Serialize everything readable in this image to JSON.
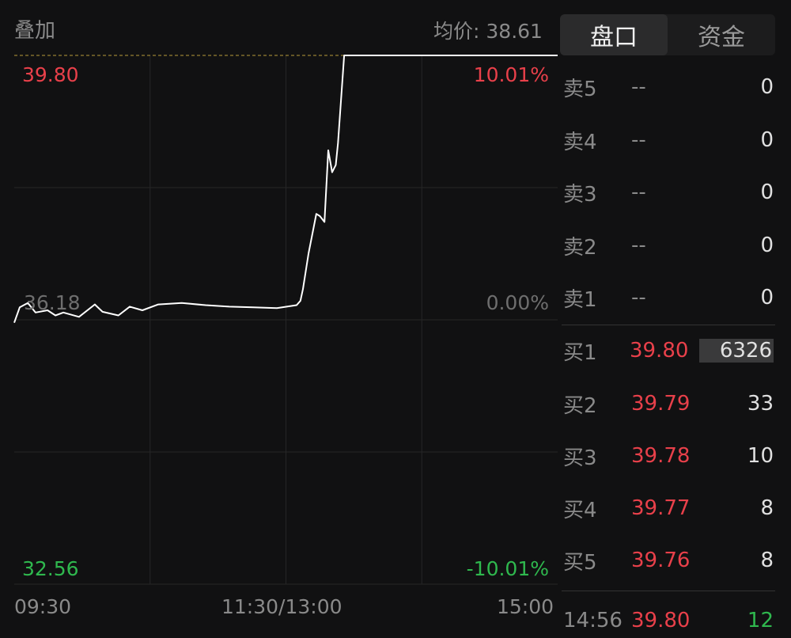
{
  "header": {
    "overlay_label": "叠加",
    "avg_price_label": "均价:",
    "avg_price": "38.61"
  },
  "tabs": [
    {
      "label": "盘口",
      "active": true
    },
    {
      "label": "资金",
      "active": false
    }
  ],
  "axis": {
    "price_high": "39.80",
    "price_mid": "36.18",
    "price_low": "32.56",
    "pct_high": "10.01%",
    "pct_mid": "0.00%",
    "pct_low": "-10.01%",
    "times": [
      "09:30",
      "11:30/13:00",
      "15:00"
    ]
  },
  "colors": {
    "up": "#e8404a",
    "down": "#2fb84e",
    "line": "#ffffff",
    "bg": "#111112"
  },
  "chart_data": {
    "type": "line",
    "ylim": [
      32.56,
      39.8
    ],
    "xlim_minutes": [
      0,
      240
    ],
    "x": [
      0,
      2.4,
      6,
      9.4,
      14.7,
      18.2,
      21.7,
      28.6,
      35.6,
      39,
      46,
      51,
      56.6,
      63.6,
      74,
      84.5,
      95,
      105.5,
      116,
      124.7,
      126.4,
      127.5,
      130,
      133.4,
      135,
      137,
      138.7,
      140.4,
      142,
      143,
      145.7,
      240
    ],
    "y": [
      36.14,
      36.35,
      36.41,
      36.28,
      36.31,
      36.24,
      36.28,
      36.22,
      36.39,
      36.29,
      36.24,
      36.36,
      36.31,
      36.39,
      36.41,
      36.38,
      36.36,
      36.35,
      36.34,
      36.38,
      36.44,
      36.6,
      37.09,
      37.63,
      37.6,
      37.52,
      38.5,
      38.2,
      38.3,
      38.6,
      39.8,
      39.8
    ]
  },
  "orderbook": {
    "asks": [
      {
        "label": "卖5",
        "price": "--",
        "vol": "0"
      },
      {
        "label": "卖4",
        "price": "--",
        "vol": "0"
      },
      {
        "label": "卖3",
        "price": "--",
        "vol": "0"
      },
      {
        "label": "卖2",
        "price": "--",
        "vol": "0"
      },
      {
        "label": "卖1",
        "price": "--",
        "vol": "0"
      }
    ],
    "bids": [
      {
        "label": "买1",
        "price": "39.80",
        "vol": "6326"
      },
      {
        "label": "买2",
        "price": "39.79",
        "vol": "33"
      },
      {
        "label": "买3",
        "price": "39.78",
        "vol": "10"
      },
      {
        "label": "买4",
        "price": "39.77",
        "vol": "8"
      },
      {
        "label": "买5",
        "price": "39.76",
        "vol": "8"
      }
    ]
  },
  "last_trade": {
    "time": "14:56",
    "price": "39.80",
    "vol": "12"
  }
}
